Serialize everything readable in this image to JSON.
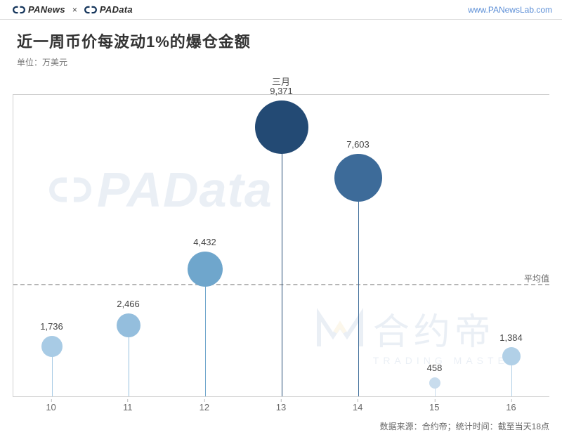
{
  "header": {
    "brand1": "PANews",
    "brand_x": "×",
    "brand2": "PAData",
    "url": "www.PANewsLab.com",
    "brand_icon_color": "#16365c"
  },
  "title": "近一周币价每波动1%的爆仓金额",
  "subtitle": "单位：万美元",
  "footer": "数据来源：合约帝；统计时间：截至当天18点",
  "chart": {
    "type": "lollipop",
    "month_label": "三月",
    "average_label": "平均值",
    "average_value": 3921,
    "ylim": [
      0,
      10500
    ],
    "categories": [
      "10",
      "11",
      "12",
      "13",
      "14",
      "15",
      "16"
    ],
    "values": [
      1736,
      2466,
      4432,
      9371,
      7603,
      458,
      1384
    ],
    "value_labels": [
      "1,736",
      "2,466",
      "4,432",
      "9,371",
      "7,603",
      "458",
      "1,384"
    ],
    "colors": [
      "#a8cbe5",
      "#94bedd",
      "#6fa6cc",
      "#234a74",
      "#3d6b99",
      "#c8dced",
      "#b1d0e7"
    ],
    "dot_radii": [
      15,
      17,
      25,
      38,
      34,
      8,
      13
    ],
    "stem_width": 1,
    "axis_color": "#d0d0d0",
    "avg_line_color": "#b6b6b6",
    "label_fontsize": 13,
    "background_color": "#ffffff"
  },
  "watermark": {
    "padata_text": "PAData",
    "heyue_text": "合约帝",
    "heyue_sub": "TRADING MASTER"
  }
}
